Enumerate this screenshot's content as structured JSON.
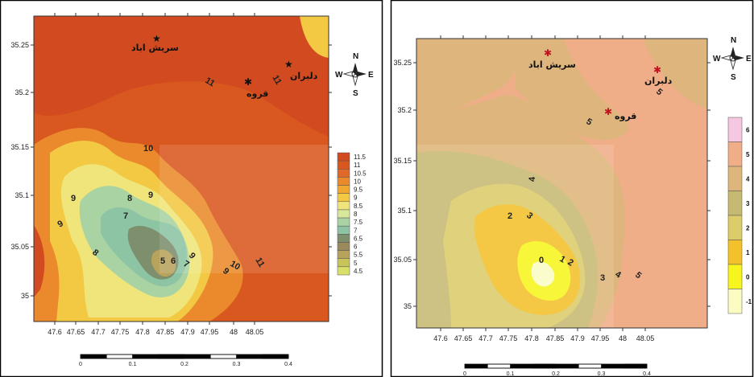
{
  "left_map": {
    "x_ticks": [
      "47.6",
      "47.65",
      "47.7",
      "47.75",
      "47.8",
      "47.85",
      "47.9",
      "47.95",
      "48",
      "48.05"
    ],
    "y_ticks": [
      "35.25",
      "35.2",
      "35.15",
      "35.1",
      "35.05",
      "35"
    ],
    "places": {
      "sarish_abad": "سریش اباد",
      "qoroveh": "قروه",
      "delbaran": "دلبران"
    },
    "contour_labels": [
      "11",
      "11",
      "10",
      "10",
      "9",
      "9",
      "9",
      "9",
      "8",
      "8",
      "7",
      "6",
      "7",
      "5",
      "9",
      "11"
    ],
    "legend": [
      "11.5",
      "11",
      "10.5",
      "10",
      "9.5",
      "9",
      "8.5",
      "8",
      "7.5",
      "7",
      "6.5",
      "6",
      "5.5",
      "5",
      "4.5"
    ],
    "legend_colors": [
      "#d24a1f",
      "#d9581f",
      "#e0692a",
      "#eb8a2c",
      "#f0a830",
      "#f3c842",
      "#efe57a",
      "#d8e79a",
      "#a9d3a2",
      "#8cc4a4",
      "#7e8f6e",
      "#9a8a5c",
      "#b7a35c",
      "#c8c45a",
      "#d8e06a"
    ],
    "scale": [
      "0",
      "0.1",
      "0.2",
      "0.3",
      "0.4"
    ]
  },
  "right_map": {
    "x_ticks": [
      "47.6",
      "47.65",
      "47.7",
      "47.75",
      "47.8",
      "47.85",
      "47.9",
      "47.95",
      "48",
      "48.05"
    ],
    "y_ticks": [
      "35.25",
      "35.2",
      "35.15",
      "35.1",
      "35.05",
      "35"
    ],
    "places": {
      "sarish_abad": "سریش اباد",
      "qoroveh": "قروه",
      "delbaran": "دلبران"
    },
    "contour_labels": [
      "5",
      "5",
      "4",
      "2",
      "3",
      "0",
      "1",
      "2",
      "3",
      "4",
      "5"
    ],
    "legend": [
      "6",
      "5",
      "4",
      "3",
      "2",
      "1",
      "0",
      "-1"
    ],
    "legend_colors": [
      "#f5c7e1",
      "#efae88",
      "#deb57c",
      "#c6ba72",
      "#dccc6a",
      "#f3c12c",
      "#f7f51e",
      "#fbfcc4"
    ],
    "scale": [
      "0",
      "0.1",
      "0.2",
      "0.3",
      "0.4"
    ]
  },
  "compass": {
    "n": "N",
    "s": "S",
    "e": "E",
    "w": "W"
  }
}
